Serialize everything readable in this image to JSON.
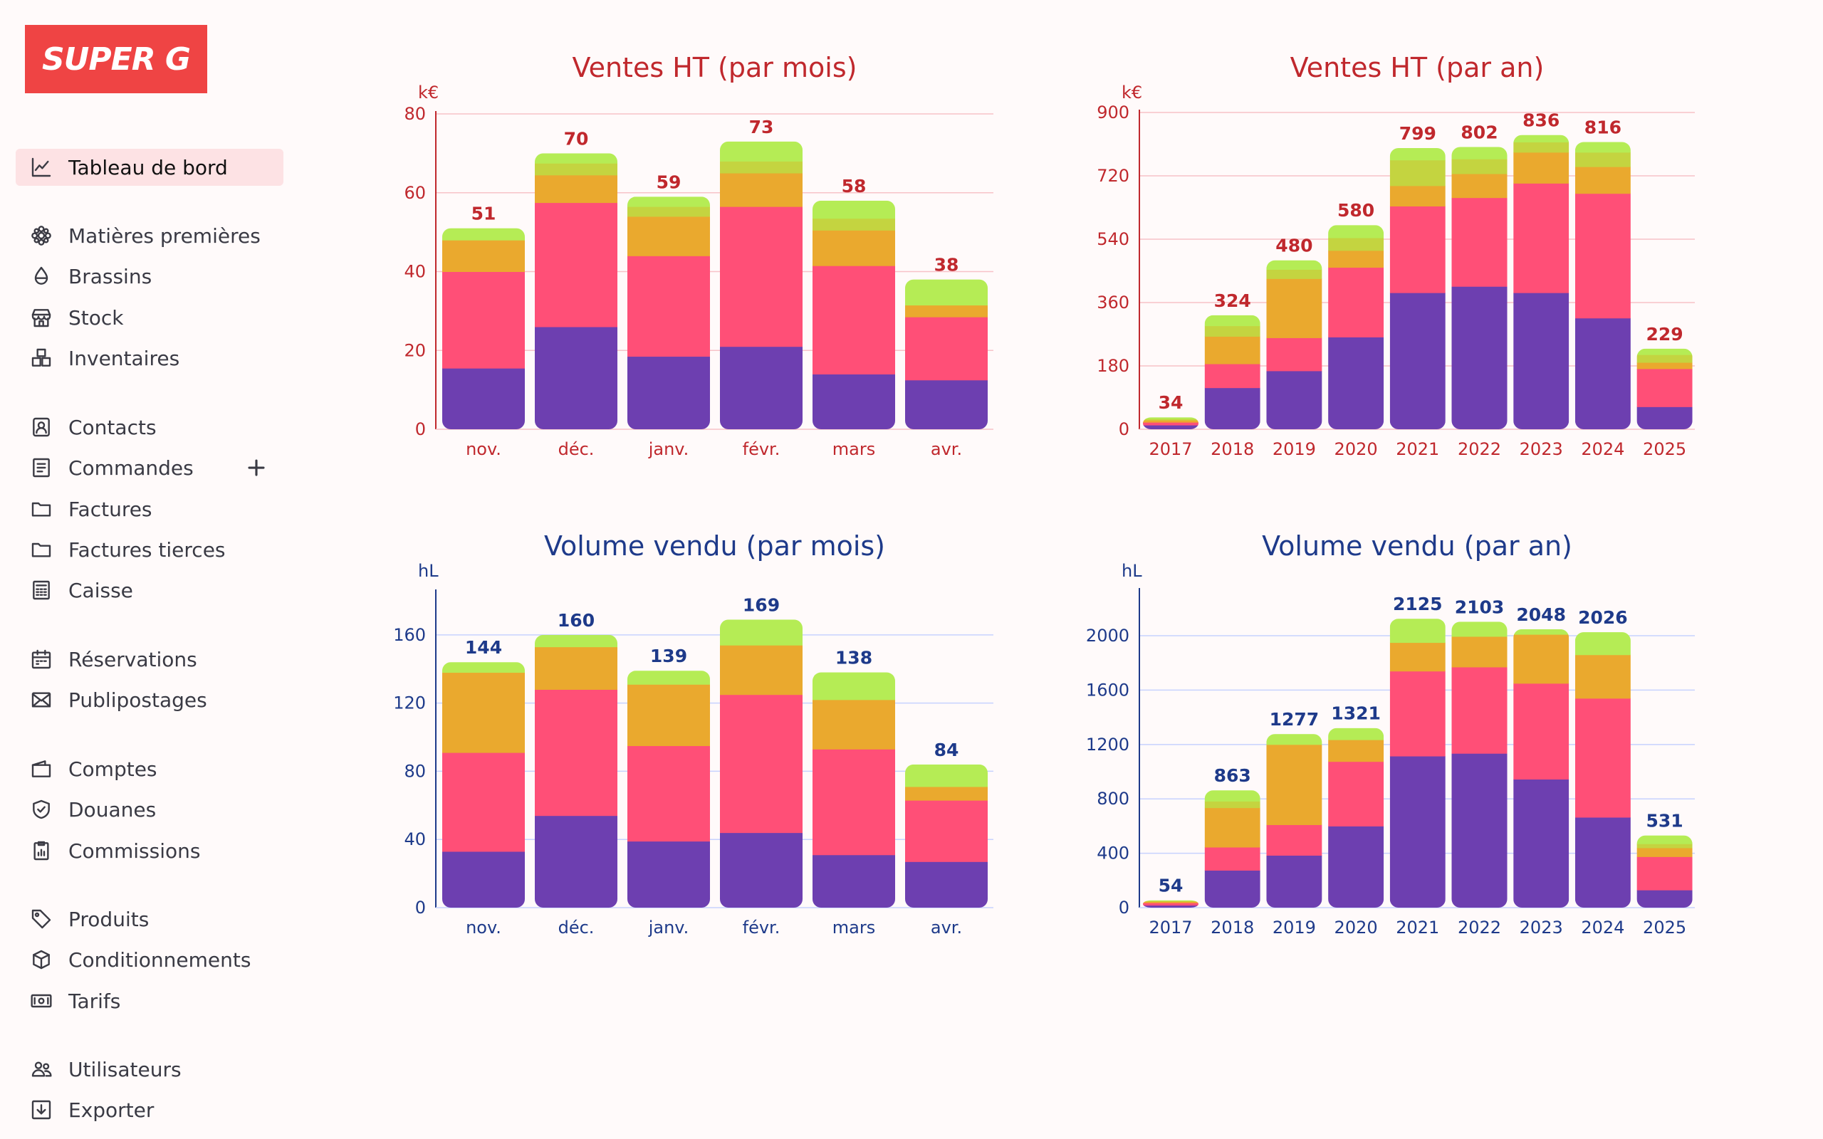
{
  "app": {
    "logo_text": "SUPER G"
  },
  "sidebar": {
    "items": [
      {
        "label": "Tableau de bord",
        "icon": "chart-line-icon",
        "active": true
      },
      {
        "label": "Matières premières",
        "icon": "hop-icon"
      },
      {
        "label": "Brassins",
        "icon": "drop-icon"
      },
      {
        "label": "Stock",
        "icon": "storefront-icon"
      },
      {
        "label": "Inventaires",
        "icon": "boxes-icon"
      },
      {
        "label": "Contacts",
        "icon": "contact-card-icon"
      },
      {
        "label": "Commandes",
        "icon": "order-list-icon",
        "has_add_button": true
      },
      {
        "label": "Factures",
        "icon": "folder-icon"
      },
      {
        "label": "Factures tierces",
        "icon": "folder-icon"
      },
      {
        "label": "Caisse",
        "icon": "cash-register-icon"
      },
      {
        "label": "Réservations",
        "icon": "calendar-icon"
      },
      {
        "label": "Publipostages",
        "icon": "envelope-icon"
      },
      {
        "label": "Comptes",
        "icon": "wallet-icon"
      },
      {
        "label": "Douanes",
        "icon": "shield-check-icon"
      },
      {
        "label": "Commissions",
        "icon": "clipboard-chart-icon"
      },
      {
        "label": "Produits",
        "icon": "tag-icon"
      },
      {
        "label": "Conditionnements",
        "icon": "package-icon"
      },
      {
        "label": "Tarifs",
        "icon": "banknote-icon"
      },
      {
        "label": "Utilisateurs",
        "icon": "users-icon"
      },
      {
        "label": "Exporter",
        "icon": "export-icon"
      }
    ]
  },
  "colors": {
    "series": [
      "#6d3fb0",
      "#ff4f77",
      "#eaa92e",
      "#c4d440",
      "#b5ec55"
    ],
    "sales_title": "#c0282d",
    "sales_grid": "#f7c2c8",
    "volume_title": "#1e3a8a",
    "volume_grid": "#c7d2fe"
  },
  "chart_data": [
    {
      "id": "ventes-mois",
      "type": "bar",
      "stacked": true,
      "title": "Ventes HT (par mois)",
      "unit": "k€",
      "categories": [
        "nov.",
        "déc.",
        "janv.",
        "févr.",
        "mars",
        "avr."
      ],
      "totals": [
        "51",
        "70",
        "59",
        "73",
        "58",
        "38"
      ],
      "yticks": [
        "0",
        "20",
        "40",
        "60",
        "80"
      ],
      "ylim": [
        0,
        80
      ],
      "grid": true,
      "segments": [
        [
          15.5,
          24.5,
          8,
          0,
          3
        ],
        [
          26,
          31.5,
          7,
          3,
          2.5
        ],
        [
          18.5,
          25.5,
          10,
          2.5,
          2.5
        ],
        [
          21,
          35.5,
          8.5,
          3,
          5
        ],
        [
          14,
          27.5,
          9,
          3,
          4.5
        ],
        [
          12.5,
          16,
          3,
          0,
          6.5
        ]
      ]
    },
    {
      "id": "ventes-an",
      "type": "bar",
      "stacked": true,
      "title": "Ventes HT (par an)",
      "unit": "k€",
      "categories": [
        "2017",
        "2018",
        "2019",
        "2020",
        "2021",
        "2022",
        "2023",
        "2024",
        "2025"
      ],
      "totals": [
        "34",
        "324",
        "480",
        "580",
        "799",
        "802",
        "836",
        "816",
        "229"
      ],
      "yticks": [
        "0",
        "180",
        "360",
        "540",
        "720",
        "900"
      ],
      "ylim": [
        0,
        900
      ],
      "grid": true,
      "segments": [
        [
          12,
          8,
          6,
          4,
          4
        ],
        [
          118,
          68,
          78,
          30,
          30
        ],
        [
          166,
          94,
          168,
          26,
          26
        ],
        [
          262,
          198,
          48,
          36,
          36
        ],
        [
          388,
          246,
          58,
          73,
          34
        ],
        [
          406,
          252,
          68,
          42,
          34
        ],
        [
          388,
          311,
          88,
          29,
          20
        ],
        [
          316,
          354,
          76,
          41,
          29
        ],
        [
          64,
          108,
          18,
          22,
          17
        ]
      ]
    },
    {
      "id": "volume-mois",
      "type": "bar",
      "stacked": true,
      "title": "Volume vendu (par mois)",
      "unit": "hL",
      "categories": [
        "nov.",
        "déc.",
        "janv.",
        "févr.",
        "mars",
        "avr."
      ],
      "totals": [
        "144",
        "160",
        "139",
        "169",
        "138",
        "84"
      ],
      "yticks": [
        "0",
        "40",
        "80",
        "120",
        "160"
      ],
      "ylim": [
        0,
        185
      ],
      "grid": true,
      "segments": [
        [
          33,
          58,
          47,
          0,
          6
        ],
        [
          54,
          74,
          25,
          0,
          7
        ],
        [
          39,
          56,
          36,
          0,
          8
        ],
        [
          44,
          81,
          29,
          0,
          15
        ],
        [
          31,
          62,
          29,
          0,
          16
        ],
        [
          27,
          36,
          8,
          0,
          13
        ]
      ]
    },
    {
      "id": "volume-an",
      "type": "bar",
      "stacked": true,
      "title": "Volume vendu (par an)",
      "unit": "hL",
      "categories": [
        "2017",
        "2018",
        "2019",
        "2020",
        "2021",
        "2022",
        "2023",
        "2024",
        "2025"
      ],
      "totals": [
        "54",
        "863",
        "1277",
        "1321",
        "2125",
        "2103",
        "2048",
        "2026",
        "531"
      ],
      "yticks": [
        "0",
        "400",
        "800",
        "1200",
        "1600",
        "2000"
      ],
      "ylim": [
        0,
        2330
      ],
      "grid": true,
      "segments": [
        [
          18,
          18,
          10,
          4,
          4
        ],
        [
          275,
          170,
          290,
          48,
          80
        ],
        [
          385,
          225,
          590,
          0,
          77
        ],
        [
          600,
          475,
          160,
          0,
          86
        ],
        [
          1115,
          625,
          210,
          0,
          175
        ],
        [
          1135,
          635,
          225,
          0,
          108
        ],
        [
          945,
          705,
          360,
          0,
          38
        ],
        [
          665,
          875,
          320,
          0,
          166
        ],
        [
          130,
          245,
          65,
          30,
          61
        ]
      ]
    }
  ]
}
